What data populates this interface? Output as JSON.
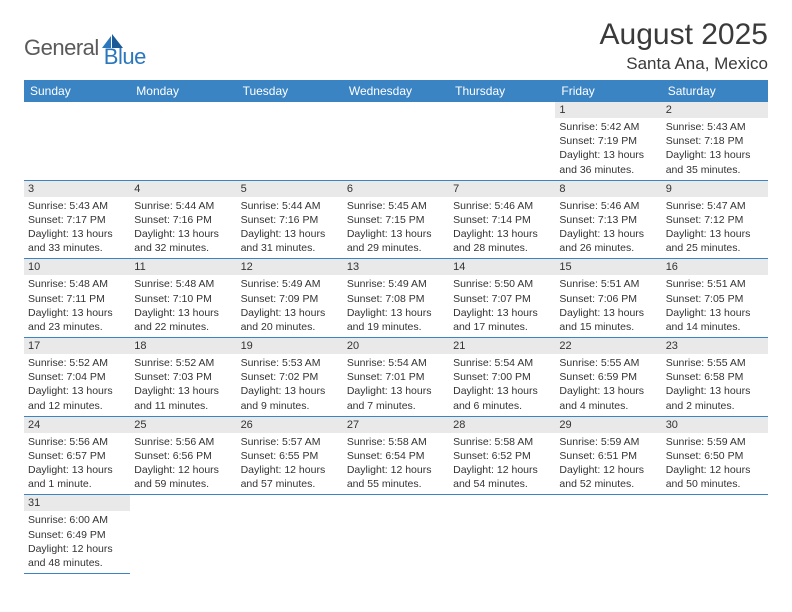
{
  "logo": {
    "text1": "General",
    "text2": "Blue"
  },
  "title": "August 2025",
  "location": "Santa Ana, Mexico",
  "colors": {
    "header_bg": "#3a84c4",
    "header_text": "#ffffff",
    "daynum_bg": "#e9e9e9",
    "border": "#3a84c4",
    "logo_gray": "#5a5a5a",
    "logo_blue": "#2b77bd"
  },
  "dayNames": [
    "Sunday",
    "Monday",
    "Tuesday",
    "Wednesday",
    "Thursday",
    "Friday",
    "Saturday"
  ],
  "weeks": [
    [
      {
        "blank": true
      },
      {
        "blank": true
      },
      {
        "blank": true
      },
      {
        "blank": true
      },
      {
        "blank": true
      },
      {
        "n": "1",
        "sr": "5:42 AM",
        "ss": "7:19 PM",
        "dl": "13 hours and 36 minutes."
      },
      {
        "n": "2",
        "sr": "5:43 AM",
        "ss": "7:18 PM",
        "dl": "13 hours and 35 minutes."
      }
    ],
    [
      {
        "n": "3",
        "sr": "5:43 AM",
        "ss": "7:17 PM",
        "dl": "13 hours and 33 minutes."
      },
      {
        "n": "4",
        "sr": "5:44 AM",
        "ss": "7:16 PM",
        "dl": "13 hours and 32 minutes."
      },
      {
        "n": "5",
        "sr": "5:44 AM",
        "ss": "7:16 PM",
        "dl": "13 hours and 31 minutes."
      },
      {
        "n": "6",
        "sr": "5:45 AM",
        "ss": "7:15 PM",
        "dl": "13 hours and 29 minutes."
      },
      {
        "n": "7",
        "sr": "5:46 AM",
        "ss": "7:14 PM",
        "dl": "13 hours and 28 minutes."
      },
      {
        "n": "8",
        "sr": "5:46 AM",
        "ss": "7:13 PM",
        "dl": "13 hours and 26 minutes."
      },
      {
        "n": "9",
        "sr": "5:47 AM",
        "ss": "7:12 PM",
        "dl": "13 hours and 25 minutes."
      }
    ],
    [
      {
        "n": "10",
        "sr": "5:48 AM",
        "ss": "7:11 PM",
        "dl": "13 hours and 23 minutes."
      },
      {
        "n": "11",
        "sr": "5:48 AM",
        "ss": "7:10 PM",
        "dl": "13 hours and 22 minutes."
      },
      {
        "n": "12",
        "sr": "5:49 AM",
        "ss": "7:09 PM",
        "dl": "13 hours and 20 minutes."
      },
      {
        "n": "13",
        "sr": "5:49 AM",
        "ss": "7:08 PM",
        "dl": "13 hours and 19 minutes."
      },
      {
        "n": "14",
        "sr": "5:50 AM",
        "ss": "7:07 PM",
        "dl": "13 hours and 17 minutes."
      },
      {
        "n": "15",
        "sr": "5:51 AM",
        "ss": "7:06 PM",
        "dl": "13 hours and 15 minutes."
      },
      {
        "n": "16",
        "sr": "5:51 AM",
        "ss": "7:05 PM",
        "dl": "13 hours and 14 minutes."
      }
    ],
    [
      {
        "n": "17",
        "sr": "5:52 AM",
        "ss": "7:04 PM",
        "dl": "13 hours and 12 minutes."
      },
      {
        "n": "18",
        "sr": "5:52 AM",
        "ss": "7:03 PM",
        "dl": "13 hours and 11 minutes."
      },
      {
        "n": "19",
        "sr": "5:53 AM",
        "ss": "7:02 PM",
        "dl": "13 hours and 9 minutes."
      },
      {
        "n": "20",
        "sr": "5:54 AM",
        "ss": "7:01 PM",
        "dl": "13 hours and 7 minutes."
      },
      {
        "n": "21",
        "sr": "5:54 AM",
        "ss": "7:00 PM",
        "dl": "13 hours and 6 minutes."
      },
      {
        "n": "22",
        "sr": "5:55 AM",
        "ss": "6:59 PM",
        "dl": "13 hours and 4 minutes."
      },
      {
        "n": "23",
        "sr": "5:55 AM",
        "ss": "6:58 PM",
        "dl": "13 hours and 2 minutes."
      }
    ],
    [
      {
        "n": "24",
        "sr": "5:56 AM",
        "ss": "6:57 PM",
        "dl": "13 hours and 1 minute."
      },
      {
        "n": "25",
        "sr": "5:56 AM",
        "ss": "6:56 PM",
        "dl": "12 hours and 59 minutes."
      },
      {
        "n": "26",
        "sr": "5:57 AM",
        "ss": "6:55 PM",
        "dl": "12 hours and 57 minutes."
      },
      {
        "n": "27",
        "sr": "5:58 AM",
        "ss": "6:54 PM",
        "dl": "12 hours and 55 minutes."
      },
      {
        "n": "28",
        "sr": "5:58 AM",
        "ss": "6:52 PM",
        "dl": "12 hours and 54 minutes."
      },
      {
        "n": "29",
        "sr": "5:59 AM",
        "ss": "6:51 PM",
        "dl": "12 hours and 52 minutes."
      },
      {
        "n": "30",
        "sr": "5:59 AM",
        "ss": "6:50 PM",
        "dl": "12 hours and 50 minutes."
      }
    ],
    [
      {
        "n": "31",
        "sr": "6:00 AM",
        "ss": "6:49 PM",
        "dl": "12 hours and 48 minutes."
      },
      {
        "blank": true,
        "noborder": true
      },
      {
        "blank": true,
        "noborder": true
      },
      {
        "blank": true,
        "noborder": true
      },
      {
        "blank": true,
        "noborder": true
      },
      {
        "blank": true,
        "noborder": true
      },
      {
        "blank": true,
        "noborder": true
      }
    ]
  ],
  "labels": {
    "sunrise": "Sunrise:",
    "sunset": "Sunset:",
    "daylight": "Daylight:"
  }
}
